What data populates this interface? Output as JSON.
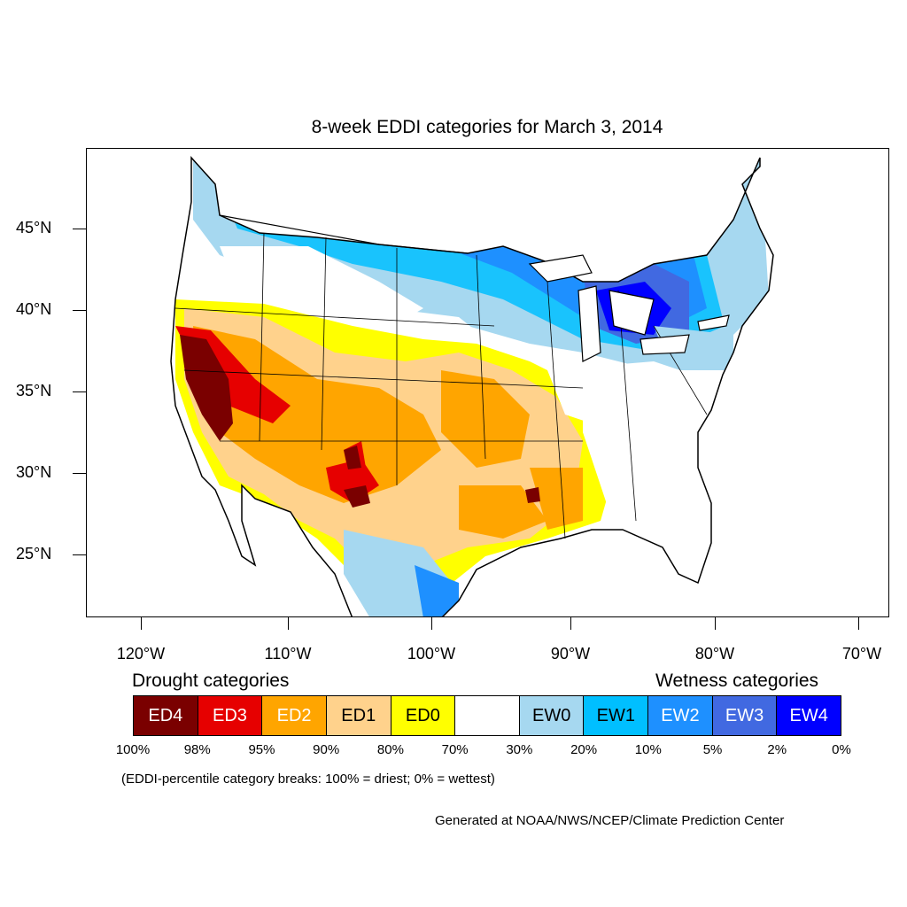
{
  "title": "8-week EDDI categories for March 3, 2014",
  "lat_labels": [
    "45°N",
    "40°N",
    "35°N",
    "30°N",
    "25°N"
  ],
  "lon_labels": [
    "120°W",
    "110°W",
    "100°W",
    "90°W",
    "80°W",
    "70°W"
  ],
  "legend": {
    "drought_title": "Drought categories",
    "wetness_title": "Wetness categories",
    "categories": [
      {
        "label": "ED4",
        "color": "#7a0000",
        "text_color": "#ffffff"
      },
      {
        "label": "ED3",
        "color": "#e60000",
        "text_color": "#ffffff"
      },
      {
        "label": "ED2",
        "color": "#ffa500",
        "text_color": "#ffffff"
      },
      {
        "label": "ED1",
        "color": "#ffd28c",
        "text_color": "#000000"
      },
      {
        "label": "ED0",
        "color": "#ffff00",
        "text_color": "#000000"
      },
      {
        "label": "",
        "color": "#ffffff",
        "text_color": "#000000"
      },
      {
        "label": "EW0",
        "color": "#a6d8f0",
        "text_color": "#000000"
      },
      {
        "label": "EW1",
        "color": "#00bfff",
        "text_color": "#000000"
      },
      {
        "label": "EW2",
        "color": "#1e90ff",
        "text_color": "#ffffff"
      },
      {
        "label": "EW3",
        "color": "#4169e1",
        "text_color": "#ffffff"
      },
      {
        "label": "EW4",
        "color": "#0000ff",
        "text_color": "#ffffff"
      }
    ],
    "percent_breaks": [
      "100%",
      "98%",
      "95%",
      "90%",
      "80%",
      "70%",
      "30%",
      "20%",
      "10%",
      "5%",
      "2%",
      "0%"
    ]
  },
  "note": "(EDDI-percentile category breaks: 100% = driest; 0% = wettest)",
  "credit": "Generated at NOAA/NWS/NCEP/Climate Prediction Center"
}
